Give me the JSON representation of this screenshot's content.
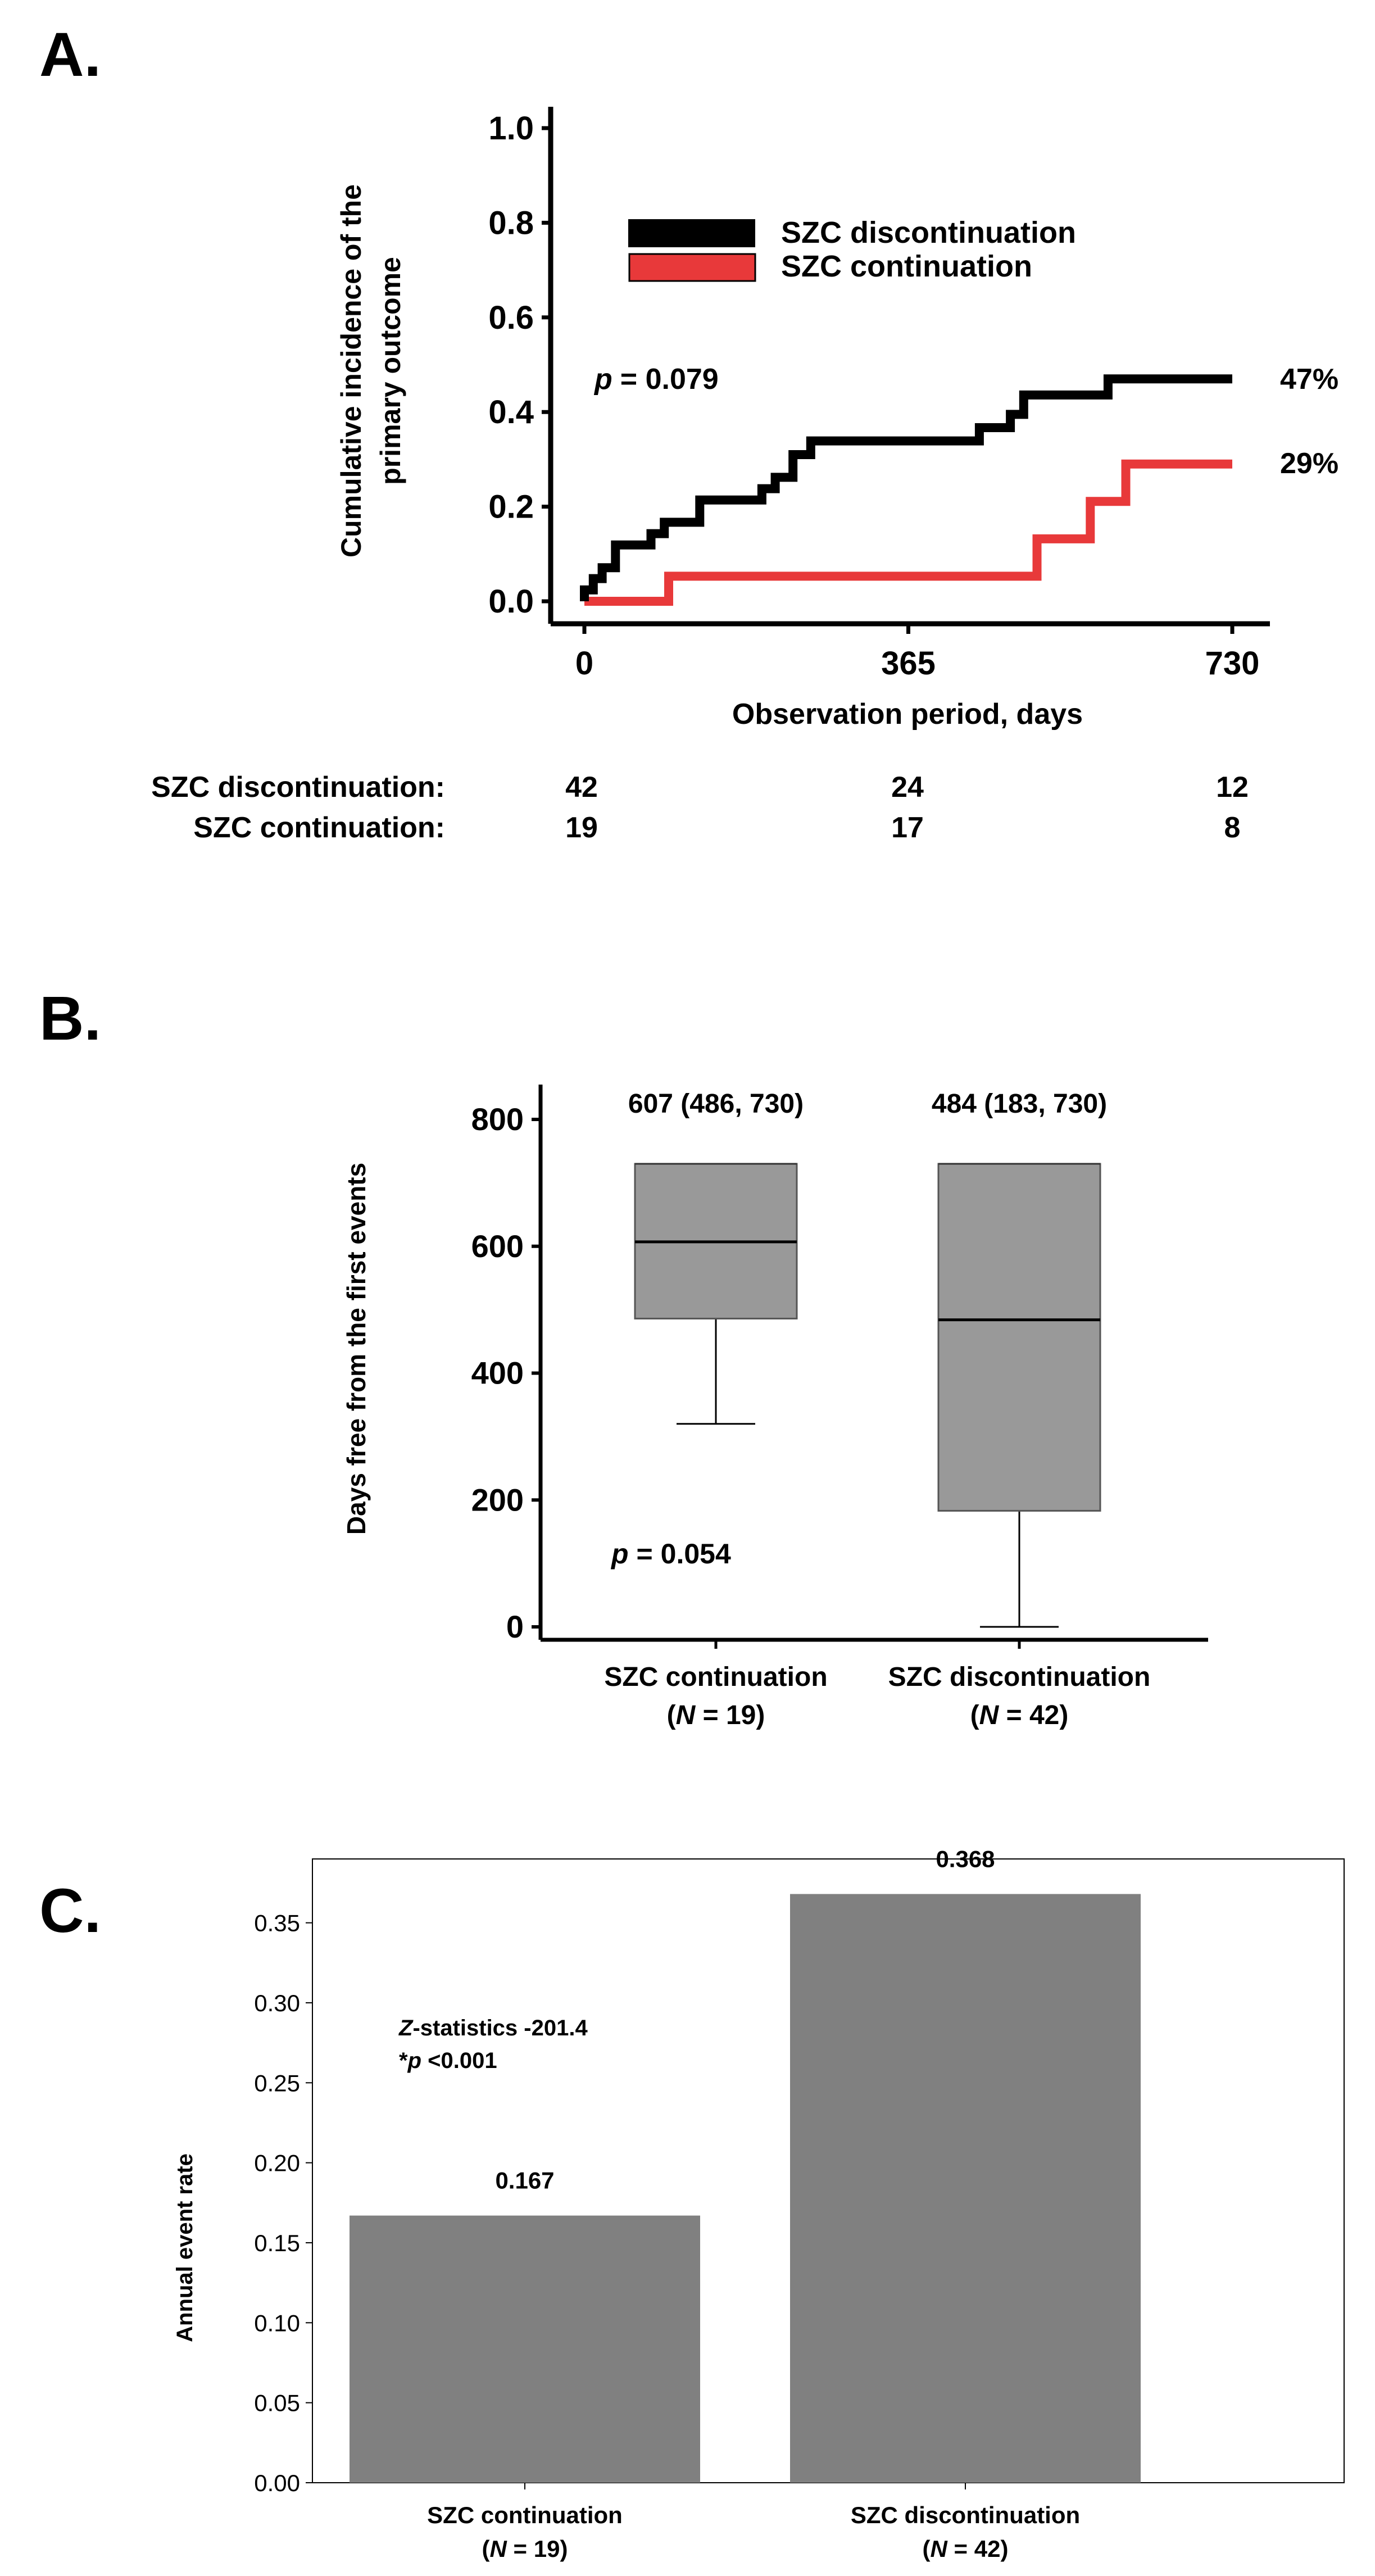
{
  "chart_data": [
    {
      "panel": "A.",
      "type": "line",
      "subtype": "step",
      "ylabel_line1": "Cumulative incidence of the",
      "ylabel_line2": "primary outcome",
      "xlabel": "Observation period, days",
      "xlim": [
        0,
        730
      ],
      "ylim": [
        0,
        1.0
      ],
      "xticks": [
        "0",
        "365",
        "730"
      ],
      "yticks": [
        "0.0",
        "0.2",
        "0.4",
        "0.6",
        "0.8",
        "1.0"
      ],
      "legend_position": "top-right",
      "p_label": "p",
      "p_value": "= 0.079",
      "series": [
        {
          "name": "SZC discontinuation",
          "color": "#000000",
          "end_label": "47%",
          "x": [
            0,
            0,
            10,
            10,
            20,
            20,
            35,
            35,
            60,
            60,
            75,
            75,
            90,
            90,
            130,
            130,
            170,
            170,
            200,
            200,
            215,
            215,
            235,
            235,
            255,
            255,
            445,
            445,
            480,
            480,
            495,
            495,
            525,
            525,
            590,
            590,
            730
          ],
          "y": [
            0,
            0.024,
            0.024,
            0.048,
            0.048,
            0.071,
            0.071,
            0.119,
            0.119,
            0.119,
            0.119,
            0.143,
            0.143,
            0.167,
            0.167,
            0.214,
            0.214,
            0.214,
            0.214,
            0.238,
            0.238,
            0.262,
            0.262,
            0.31,
            0.31,
            0.339,
            0.339,
            0.367,
            0.367,
            0.395,
            0.395,
            0.436,
            0.436,
            0.436,
            0.436,
            0.47,
            0.47
          ]
        },
        {
          "name": "SZC continuation",
          "color": "#e8393a",
          "end_label": "29%",
          "x": [
            0,
            0,
            95,
            95,
            510,
            510,
            570,
            570,
            610,
            610,
            730
          ],
          "y": [
            0,
            0,
            0,
            0.053,
            0.053,
            0.132,
            0.132,
            0.211,
            0.211,
            0.29,
            0.29
          ]
        }
      ],
      "risk_table": {
        "rows": [
          {
            "label": "SZC discontinuation:",
            "values": [
              "42",
              "24",
              "12"
            ]
          },
          {
            "label": "SZC continuation:",
            "values": [
              "19",
              "17",
              "8"
            ]
          }
        ]
      }
    },
    {
      "panel": "B.",
      "type": "box",
      "ylabel": "Days free from the first events",
      "ylim": [
        0,
        830
      ],
      "yticks": [
        "0",
        "200",
        "400",
        "600",
        "800"
      ],
      "p_label": "p",
      "p_value": "= 0.054",
      "groups": [
        {
          "name_line1": "SZC continuation",
          "n_label": "N",
          "n_value": " = 19)",
          "summary_label": "607 (486, 730)",
          "median": 607,
          "q1": 486,
          "q3": 730,
          "whisker_low": 320,
          "whisker_high": 730
        },
        {
          "name_line1": "SZC discontinuation",
          "n_label": "N",
          "n_value": " = 42)",
          "summary_label": "484 (183, 730)",
          "median": 484,
          "q1": 183,
          "q3": 730,
          "whisker_low": 0,
          "whisker_high": 730
        }
      ]
    },
    {
      "panel": "C.",
      "type": "bar",
      "ylabel": "Annual event rate",
      "ylim": [
        0,
        0.385
      ],
      "yticks": [
        "0.00",
        "0.05",
        "0.10",
        "0.15",
        "0.20",
        "0.25",
        "0.30",
        "0.35"
      ],
      "stat_z_label": "Z",
      "stat_z_text": "-statistics -201.4",
      "stat_p_prefix": "*",
      "stat_p_label": "p",
      "stat_p_value": " <0.001",
      "bar_color": "#808080",
      "categories": [
        {
          "name_line1": "SZC continuation",
          "n_label": "N",
          "n_value": " = 19)"
        },
        {
          "name_line1": "SZC discontinuation",
          "n_label": "N",
          "n_value": " = 42)"
        }
      ],
      "values": [
        0.167,
        0.368
      ],
      "value_labels": [
        "0.167",
        "0.368"
      ]
    }
  ]
}
